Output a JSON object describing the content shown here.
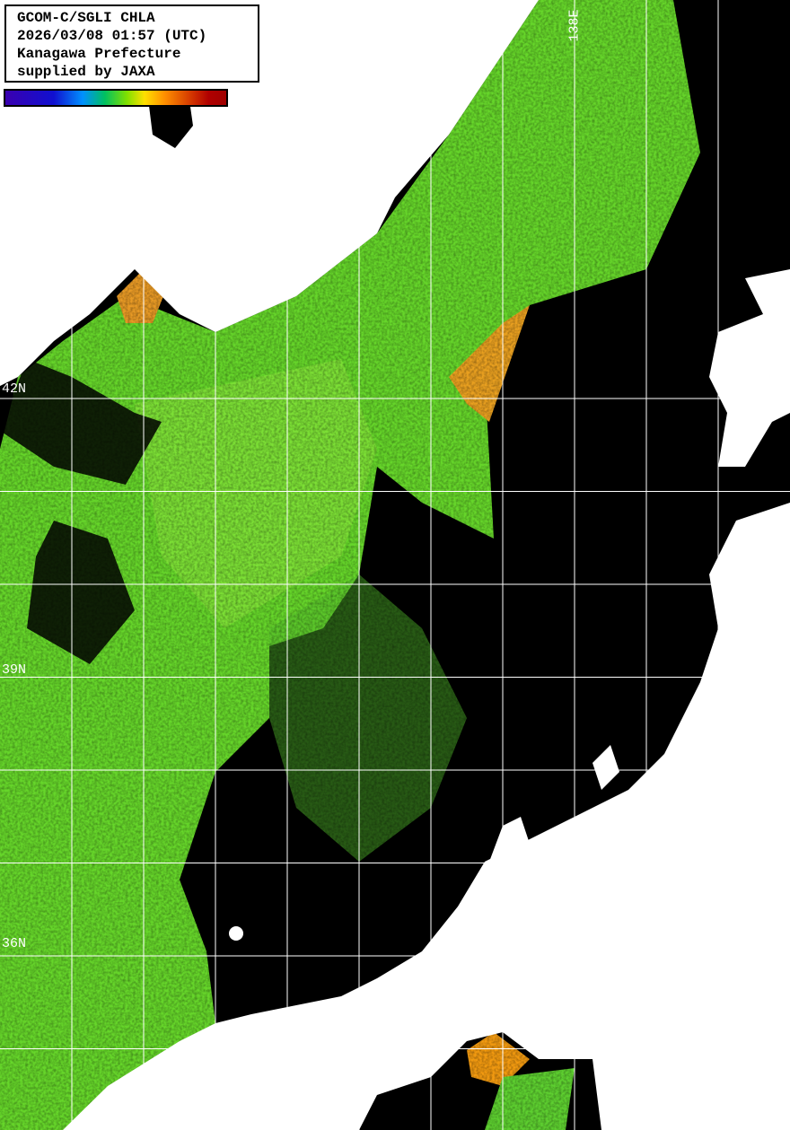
{
  "header": {
    "lines": [
      "GCOM-C/SGLI CHLA",
      "2026/03/08 01:57 (UTC)",
      "Kanagawa Prefecture",
      "supplied by JAXA"
    ]
  },
  "colorbar": {
    "colors": [
      "#3a00b0",
      "#1010d0",
      "#0090ff",
      "#00c060",
      "#80e000",
      "#ffe000",
      "#ff9000",
      "#d03000",
      "#a00000"
    ]
  },
  "grid": {
    "lat_labels": [
      "42N",
      "39N",
      "36N"
    ],
    "lon_labels": [
      "138E"
    ]
  },
  "colors": {
    "land": "#ffffff",
    "no_data": "#000000",
    "ocean_chla": "#66d62a",
    "grid": "#ffffff"
  }
}
